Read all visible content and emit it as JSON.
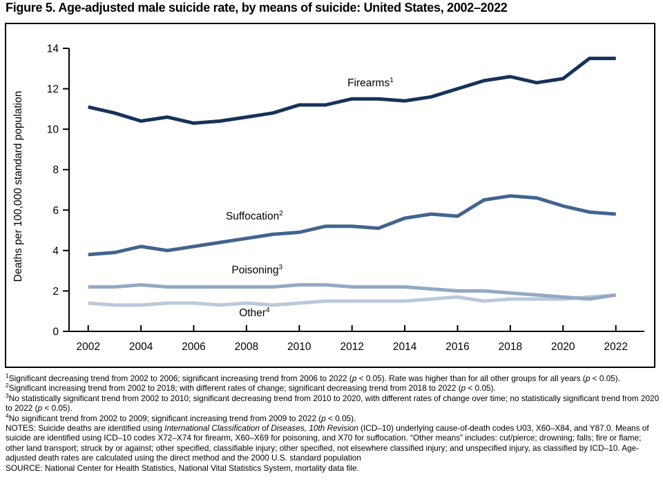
{
  "title": "Figure 5. Age-adjusted male suicide rate, by means of suicide: United States, 2002–2022",
  "chart_data": {
    "type": "line",
    "title": "Figure 5. Age-adjusted male suicide rate, by means of suicide: United States, 2002–2022",
    "xlabel": "",
    "ylabel": "Deaths per 100,000 standard population",
    "ylim": [
      0,
      14
    ],
    "ytick_step": 2,
    "grid": false,
    "legend_position": "inline-labels",
    "axis_color": "#000000",
    "x": [
      2002,
      2003,
      2004,
      2005,
      2006,
      2007,
      2008,
      2009,
      2010,
      2011,
      2012,
      2013,
      2014,
      2015,
      2016,
      2017,
      2018,
      2019,
      2020,
      2021,
      2022
    ],
    "xtick_years": [
      2002,
      2004,
      2006,
      2008,
      2010,
      2012,
      2014,
      2016,
      2018,
      2020,
      2022
    ],
    "series": [
      {
        "name": "Firearms",
        "sup": "1",
        "color": "#16325a",
        "label_at": [
          2012.7,
          12.12
        ],
        "values": [
          11.1,
          10.8,
          10.4,
          10.6,
          10.3,
          10.4,
          10.6,
          10.8,
          11.2,
          11.2,
          11.5,
          11.5,
          11.4,
          11.6,
          12.0,
          12.4,
          12.6,
          12.3,
          12.5,
          13.5,
          13.5
        ]
      },
      {
        "name": "Suffocation",
        "sup": "2",
        "color": "#42648e",
        "label_at": [
          2008.3,
          5.53
        ],
        "values": [
          3.8,
          3.9,
          4.2,
          4.0,
          4.2,
          4.4,
          4.6,
          4.8,
          4.9,
          5.2,
          5.2,
          5.1,
          5.6,
          5.8,
          5.7,
          6.5,
          6.7,
          6.6,
          6.2,
          5.9,
          5.8
        ]
      },
      {
        "name": "Poisoning",
        "sup": "3",
        "color": "#93a9c3",
        "label_at": [
          2008.4,
          2.87
        ],
        "values": [
          2.2,
          2.2,
          2.3,
          2.2,
          2.2,
          2.2,
          2.2,
          2.2,
          2.3,
          2.3,
          2.2,
          2.2,
          2.2,
          2.1,
          2.0,
          2.0,
          1.9,
          1.8,
          1.7,
          1.6,
          1.8
        ]
      },
      {
        "name": "Other",
        "sup": "4",
        "color": "#bac8da",
        "label_at": [
          2008.3,
          0.75
        ],
        "values": [
          1.4,
          1.3,
          1.3,
          1.4,
          1.4,
          1.3,
          1.4,
          1.3,
          1.4,
          1.5,
          1.5,
          1.5,
          1.5,
          1.6,
          1.7,
          1.5,
          1.6,
          1.6,
          1.6,
          1.7,
          1.8
        ]
      }
    ]
  },
  "footnotes": [
    {
      "sup": "1",
      "segments": [
        [
          "t",
          "Significant decreasing trend from 2002 to 2006; significant increasing trend from 2006 to 2022 ("
        ],
        [
          "i",
          "p"
        ],
        [
          "t",
          " < 0.05). Rate was higher than for all other groups for all years ("
        ],
        [
          "i",
          "p"
        ],
        [
          "t",
          " < 0.05)."
        ]
      ]
    },
    {
      "sup": "2",
      "segments": [
        [
          "t",
          "Significant increasing trend from 2002 to 2018; with different rates of change; significant decreasing trend from 2018 to 2022 ("
        ],
        [
          "i",
          "p"
        ],
        [
          "t",
          " < 0.05)."
        ]
      ]
    },
    {
      "sup": "3",
      "segments": [
        [
          "t",
          "No statistically significant trend from 2002 to 2010; significant decreasing trend from 2010 to 2020, with different rates of change over time; no statistically significant trend from 2020 to 2022 ("
        ],
        [
          "i",
          "p"
        ],
        [
          "t",
          " < 0.05)."
        ]
      ]
    },
    {
      "sup": "4",
      "segments": [
        [
          "t",
          "No significant trend from 2002 to 2009; significant increasing trend from 2009 to 2022 ("
        ],
        [
          "i",
          "p"
        ],
        [
          "t",
          " < 0.05)."
        ]
      ]
    }
  ],
  "notes": {
    "segments": [
      [
        "t",
        "NOTES: Suicide deaths are identified using "
      ],
      [
        "i",
        "International Classification of Diseases, 10th Revision"
      ],
      [
        "t",
        " (ICD–10) underlying cause-of-death codes U03, X60–X84, and Y87.0. Means of suicide are identified using ICD–10 codes X72–X74 for firearm, X60–X69 for poisoning, and X70 for suffocation. “Other means” includes: cut/pierce; drowning; falls; fire or flame; other land transport; struck by or against; other specified, classifiable injury; other specified, not elsewhere classified injury; and unspecified injury, as classified by ICD–10. Age-adjusted death rates are calculated using the direct method and the 2000 U.S. standard population"
      ]
    ]
  },
  "source": "SOURCE: National Center for Health Statistics, National Vital Statistics System, mortality data file."
}
